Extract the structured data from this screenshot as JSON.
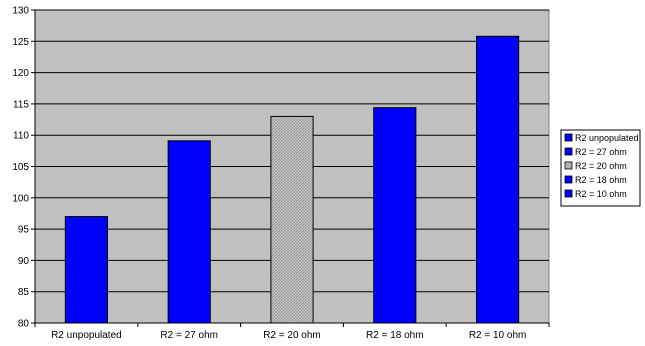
{
  "chart_data": {
    "type": "bar",
    "categories": [
      "R2 unpopulated",
      "R2 = 27 ohm",
      "R2 = 20 ohm",
      "R2 = 18 ohm",
      "R2 = 10 ohm"
    ],
    "values": [
      97,
      109.1,
      113,
      114.4,
      125.8
    ],
    "ylim": [
      80,
      130
    ],
    "yticks": [
      80,
      85,
      90,
      95,
      100,
      105,
      110,
      115,
      120,
      125,
      130
    ],
    "grid": true,
    "legend_position": "right",
    "legend": [
      "R2 unpopulated",
      "R2 = 27 ohm",
      "R2 = 20 ohm",
      "R2 = 18 ohm",
      "R2 = 10 ohm"
    ],
    "colors": {
      "bar": "#0000ff",
      "bar_highlight": "#c8c8c8",
      "plot_background": "#c0c0c0",
      "gridline": "#000000"
    },
    "highlight_index": 2
  }
}
